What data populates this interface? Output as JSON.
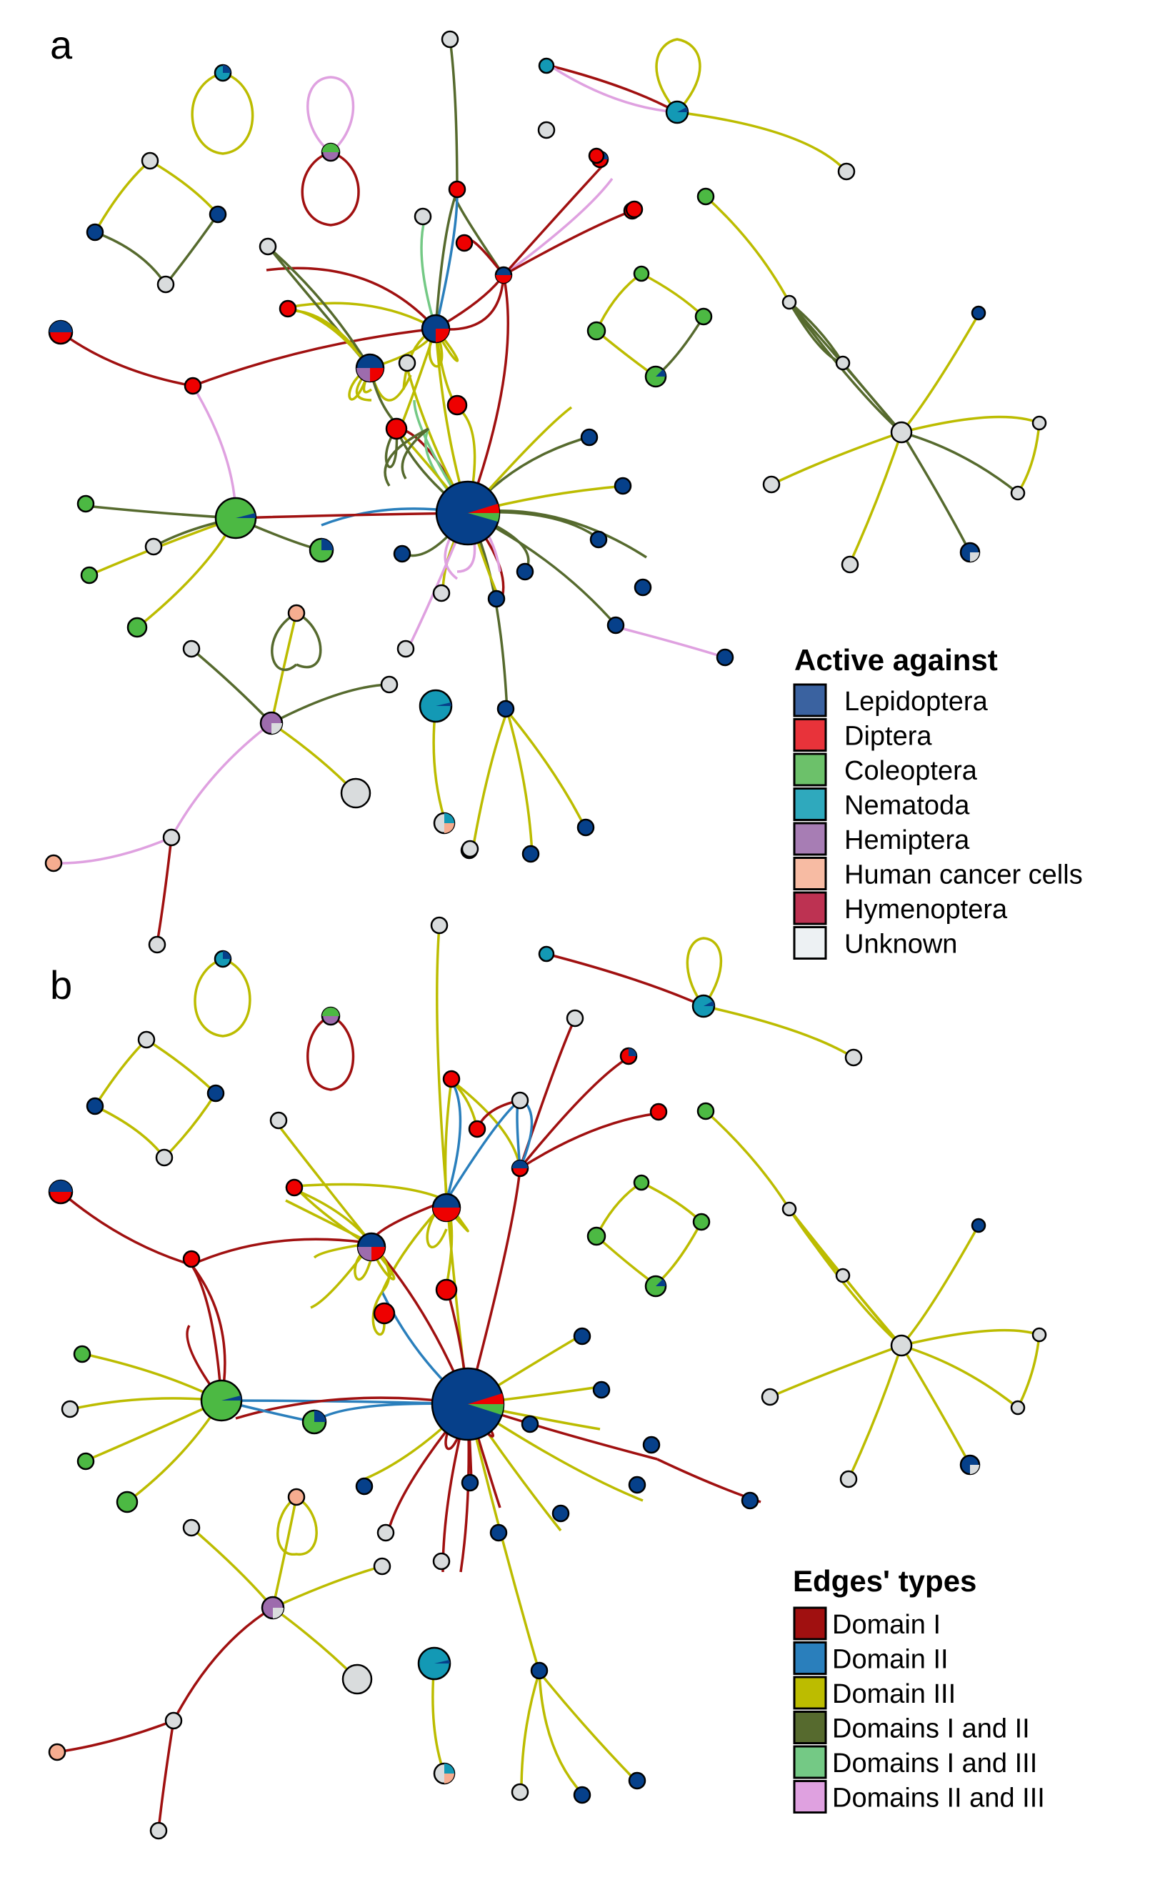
{
  "panels": [
    {
      "label": "a"
    },
    {
      "label": "b"
    }
  ],
  "legends": {
    "active_against": {
      "title": "Active against",
      "items": [
        {
          "label": "Lepidoptera",
          "color": "#3a62a0"
        },
        {
          "label": "Diptera",
          "color": "#e8333a"
        },
        {
          "label": "Coleoptera",
          "color": "#6cc16a"
        },
        {
          "label": "Nematoda",
          "color": "#2fa9bd"
        },
        {
          "label": "Hemiptera",
          "color": "#a77db4"
        },
        {
          "label": "Human cancer cells",
          "color": "#f7bba3"
        },
        {
          "label": "Hymenoptera",
          "color": "#bd3252"
        },
        {
          "label": "Unknown",
          "color": "#edf1f3"
        }
      ]
    },
    "edge_types": {
      "title": "Edges' types",
      "items": [
        {
          "label": "Domain I",
          "color": "#a01010"
        },
        {
          "label": "Domain II",
          "color": "#2a7fbc"
        },
        {
          "label": "Domain III",
          "color": "#bcbc00"
        },
        {
          "label": "Domains I and II",
          "color": "#566a2e"
        },
        {
          "label": "Domains I and III",
          "color": "#74c985"
        },
        {
          "label": "Domains II and III",
          "color": "#dfa1e0"
        }
      ]
    }
  },
  "node_colors": {
    "lepidoptera": "#06408a",
    "diptera": "#ee0000",
    "coleoptera": "#4cb943",
    "nematoda": "#1399b5",
    "hemiptera": "#9d6cad",
    "human_cancer": "#f6ad90",
    "unknown": "#d9dcdd"
  }
}
